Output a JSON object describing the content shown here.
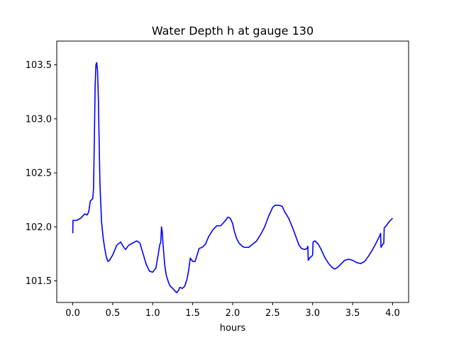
{
  "chart_data": {
    "type": "line",
    "title": "Water Depth h at gauge 130",
    "xlabel": "hours",
    "ylabel": "",
    "xlim": [
      -0.2,
      4.2
    ],
    "ylim": [
      101.3,
      103.72
    ],
    "grid": false,
    "legend": "none",
    "xticks": [
      0.0,
      0.5,
      1.0,
      1.5,
      2.0,
      2.5,
      3.0,
      3.5,
      4.0
    ],
    "xtick_labels": [
      "0.0",
      "0.5",
      "1.0",
      "1.5",
      "2.0",
      "2.5",
      "3.0",
      "3.5",
      "4.0"
    ],
    "yticks": [
      101.5,
      102.0,
      102.5,
      103.0,
      103.5
    ],
    "ytick_labels": [
      "101.5",
      "102.0",
      "102.5",
      "103.0",
      "103.5"
    ],
    "series": [
      {
        "color": "#0000ff",
        "points": [
          [
            0.0,
            101.94
          ],
          [
            0.003,
            102.06
          ],
          [
            0.05,
            102.06
          ],
          [
            0.1,
            102.08
          ],
          [
            0.15,
            102.12
          ],
          [
            0.18,
            102.11
          ],
          [
            0.2,
            102.14
          ],
          [
            0.22,
            102.24
          ],
          [
            0.25,
            102.26
          ],
          [
            0.26,
            102.35
          ],
          [
            0.27,
            102.8
          ],
          [
            0.28,
            103.3
          ],
          [
            0.29,
            103.5
          ],
          [
            0.3,
            103.52
          ],
          [
            0.31,
            103.45
          ],
          [
            0.32,
            103.2
          ],
          [
            0.33,
            102.8
          ],
          [
            0.34,
            102.4
          ],
          [
            0.36,
            102.05
          ],
          [
            0.38,
            101.9
          ],
          [
            0.4,
            101.8
          ],
          [
            0.42,
            101.72
          ],
          [
            0.44,
            101.68
          ],
          [
            0.46,
            101.69
          ],
          [
            0.5,
            101.74
          ],
          [
            0.55,
            101.83
          ],
          [
            0.6,
            101.86
          ],
          [
            0.63,
            101.82
          ],
          [
            0.66,
            101.79
          ],
          [
            0.7,
            101.83
          ],
          [
            0.75,
            101.85
          ],
          [
            0.8,
            101.87
          ],
          [
            0.84,
            101.85
          ],
          [
            0.88,
            101.75
          ],
          [
            0.92,
            101.65
          ],
          [
            0.96,
            101.59
          ],
          [
            1.0,
            101.58
          ],
          [
            1.04,
            101.62
          ],
          [
            1.07,
            101.75
          ],
          [
            1.09,
            101.84
          ],
          [
            1.1,
            101.85
          ],
          [
            1.11,
            102.0
          ],
          [
            1.12,
            101.95
          ],
          [
            1.13,
            101.83
          ],
          [
            1.15,
            101.65
          ],
          [
            1.17,
            101.55
          ],
          [
            1.2,
            101.48
          ],
          [
            1.22,
            101.45
          ],
          [
            1.25,
            101.43
          ],
          [
            1.3,
            101.39
          ],
          [
            1.32,
            101.41
          ],
          [
            1.34,
            101.44
          ],
          [
            1.37,
            101.43
          ],
          [
            1.4,
            101.45
          ],
          [
            1.43,
            101.52
          ],
          [
            1.45,
            101.6
          ],
          [
            1.47,
            101.71
          ],
          [
            1.5,
            101.68
          ],
          [
            1.53,
            101.68
          ],
          [
            1.56,
            101.75
          ],
          [
            1.58,
            101.8
          ],
          [
            1.62,
            101.81
          ],
          [
            1.66,
            101.84
          ],
          [
            1.7,
            101.91
          ],
          [
            1.75,
            101.97
          ],
          [
            1.8,
            102.01
          ],
          [
            1.85,
            102.01
          ],
          [
            1.9,
            102.05
          ],
          [
            1.94,
            102.09
          ],
          [
            1.97,
            102.08
          ],
          [
            2.0,
            102.03
          ],
          [
            2.02,
            101.96
          ],
          [
            2.05,
            101.89
          ],
          [
            2.08,
            101.85
          ],
          [
            2.12,
            101.82
          ],
          [
            2.15,
            101.81
          ],
          [
            2.2,
            101.81
          ],
          [
            2.25,
            101.84
          ],
          [
            2.3,
            101.87
          ],
          [
            2.35,
            101.93
          ],
          [
            2.4,
            102.0
          ],
          [
            2.45,
            102.1
          ],
          [
            2.5,
            102.18
          ],
          [
            2.53,
            102.2
          ],
          [
            2.58,
            102.2
          ],
          [
            2.62,
            102.19
          ],
          [
            2.65,
            102.14
          ],
          [
            2.7,
            102.08
          ],
          [
            2.75,
            101.99
          ],
          [
            2.8,
            101.89
          ],
          [
            2.83,
            101.83
          ],
          [
            2.86,
            101.8
          ],
          [
            2.9,
            101.79
          ],
          [
            2.93,
            101.8
          ],
          [
            2.94,
            101.82
          ],
          [
            2.945,
            101.69
          ],
          [
            2.96,
            101.71
          ],
          [
            2.99,
            101.73
          ],
          [
            3.0,
            101.74
          ],
          [
            3.005,
            101.86
          ],
          [
            3.03,
            101.87
          ],
          [
            3.07,
            101.84
          ],
          [
            3.1,
            101.8
          ],
          [
            3.15,
            101.72
          ],
          [
            3.2,
            101.66
          ],
          [
            3.25,
            101.62
          ],
          [
            3.28,
            101.61
          ],
          [
            3.32,
            101.63
          ],
          [
            3.36,
            101.66
          ],
          [
            3.4,
            101.69
          ],
          [
            3.45,
            101.7
          ],
          [
            3.5,
            101.69
          ],
          [
            3.55,
            101.67
          ],
          [
            3.6,
            101.66
          ],
          [
            3.65,
            101.68
          ],
          [
            3.7,
            101.73
          ],
          [
            3.75,
            101.79
          ],
          [
            3.8,
            101.86
          ],
          [
            3.84,
            101.92
          ],
          [
            3.85,
            101.94
          ],
          [
            3.855,
            101.81
          ],
          [
            3.87,
            101.83
          ],
          [
            3.89,
            101.85
          ],
          [
            3.895,
            101.99
          ],
          [
            3.92,
            102.01
          ],
          [
            3.96,
            102.05
          ],
          [
            4.0,
            102.08
          ]
        ]
      }
    ]
  }
}
